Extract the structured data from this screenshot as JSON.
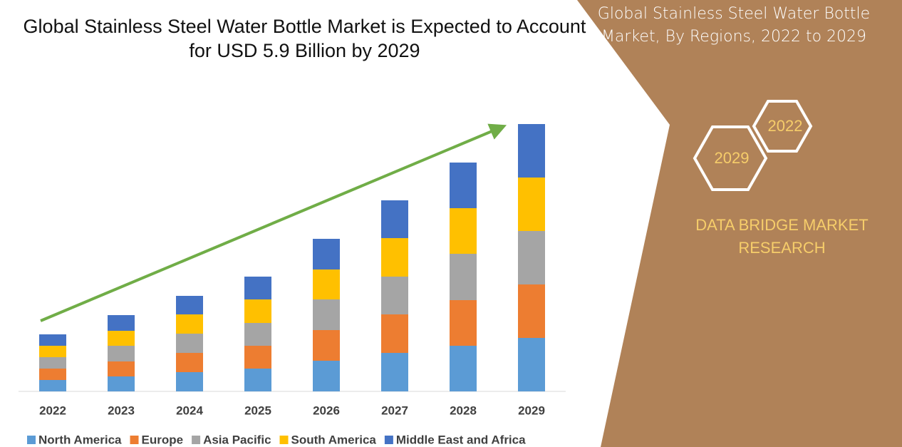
{
  "chart_data": {
    "type": "stacked_bar",
    "title": "Global Stainless Steel Water Bottle Market is Expected to Account for USD 5.9 Billion by 2029",
    "panel_title": "Global Stainless Steel Water Bottle Market, By Regions, 2022 to 2029",
    "badges": [
      "2022",
      "2029"
    ],
    "brand": "DATA BRIDGE MARKET RESEARCH",
    "categories": [
      "2022",
      "2023",
      "2024",
      "2025",
      "2026",
      "2027",
      "2028",
      "2029"
    ],
    "series": [
      {
        "name": "North America",
        "color": "#5b9bd5",
        "values": [
          16,
          21,
          27,
          32,
          43,
          54,
          64,
          75
        ]
      },
      {
        "name": "Europe",
        "color": "#ed7d31",
        "values": [
          16,
          21,
          27,
          32,
          43,
          54,
          64,
          75
        ]
      },
      {
        "name": "Asia Pacific",
        "color": "#a5a5a5",
        "values": [
          16,
          22,
          27,
          32,
          43,
          53,
          65,
          75
        ]
      },
      {
        "name": "South America",
        "color": "#ffc000",
        "values": [
          16,
          21,
          27,
          33,
          42,
          54,
          64,
          75
        ]
      },
      {
        "name": "Middle East and Africa",
        "color": "#4472c4",
        "values": [
          16,
          22,
          26,
          32,
          43,
          53,
          64,
          75
        ]
      }
    ],
    "ylim": [
      0,
      400
    ]
  }
}
